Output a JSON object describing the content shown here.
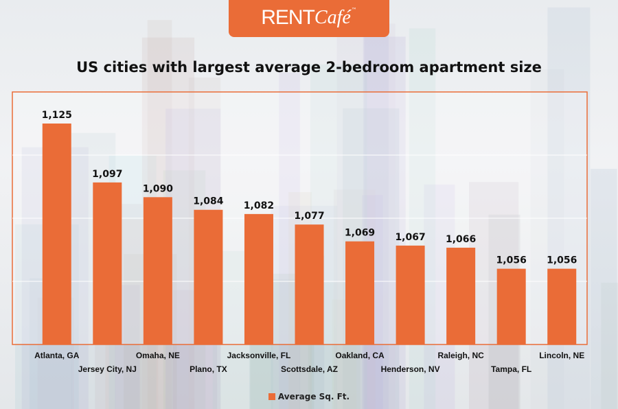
{
  "logo": {
    "text": "RENTCafé",
    "rent": "RENT",
    "cafe": "Café",
    "tm": "™"
  },
  "colors": {
    "bar": "#ea6c37",
    "frame": "#ea6c37",
    "grid": "#ffffff"
  },
  "chart_data": {
    "type": "bar",
    "title": "US cities with largest average 2-bedroom apartment size",
    "categories": [
      "Atlanta, GA",
      "Jersey City, NJ",
      "Omaha, NE",
      "Plano, TX",
      "Jacksonville, FL",
      "Scottsdale, AZ",
      "Oakland, CA",
      "Henderson, NV",
      "Raleigh, NC",
      "Tampa, FL",
      "Lincoln, NE"
    ],
    "series": [
      {
        "name": "Average Sq. Ft.",
        "values": [
          1125,
          1097,
          1090,
          1084,
          1082,
          1077,
          1069,
          1067,
          1066,
          1056,
          1056
        ]
      }
    ],
    "data_labels": [
      "1,125",
      "1,097",
      "1,090",
      "1,084",
      "1,082",
      "1,077",
      "1,069",
      "1,067",
      "1,066",
      "1,056",
      "1,056"
    ],
    "ylim": [
      1020,
      1140
    ],
    "grid_step": 30,
    "grid": true,
    "y_tick_labels_shown": false,
    "legend_position": "bottom",
    "xlabel": "",
    "ylabel": ""
  }
}
